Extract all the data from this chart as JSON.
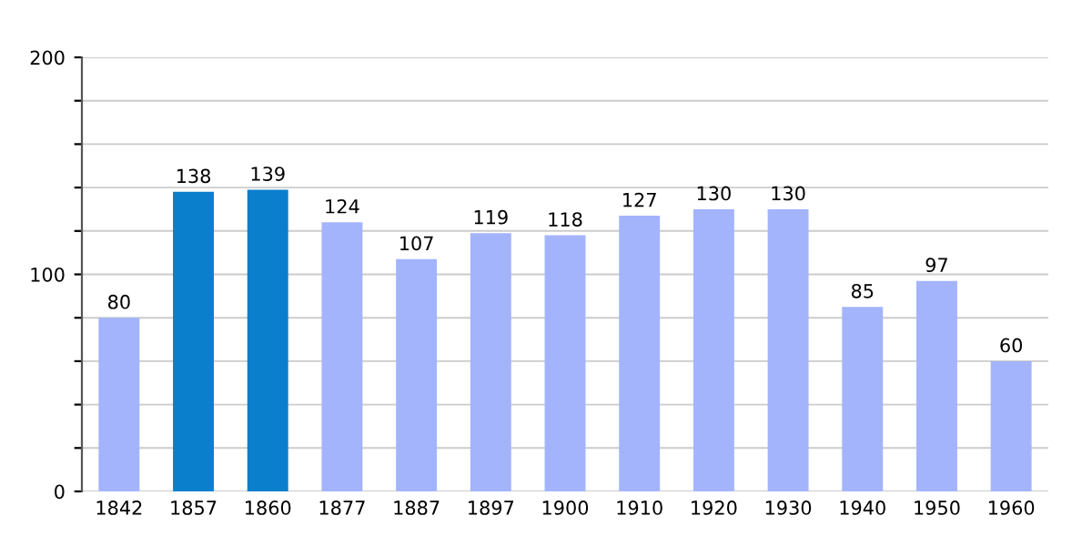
{
  "chart_data": {
    "type": "bar",
    "categories": [
      "1842",
      "1857",
      "1860",
      "1877",
      "1887",
      "1897",
      "1900",
      "1910",
      "1920",
      "1930",
      "1940",
      "1950",
      "1960"
    ],
    "values": [
      80,
      138,
      139,
      124,
      107,
      119,
      118,
      127,
      130,
      130,
      85,
      97,
      60
    ],
    "colors": [
      "#a3b4fc",
      "#0a7fcc",
      "#0a7fcc",
      "#a3b4fc",
      "#a3b4fc",
      "#a3b4fc",
      "#a3b4fc",
      "#a3b4fc",
      "#a3b4fc",
      "#a3b4fc",
      "#a3b4fc",
      "#a3b4fc",
      "#a3b4fc"
    ],
    "ylim": [
      0,
      200
    ],
    "yticks": [
      0,
      {
        "value": 20,
        "label": null
      },
      {
        "value": 40,
        "label": null
      },
      {
        "value": 60,
        "label": null
      },
      {
        "value": 80,
        "label": null
      },
      100,
      {
        "value": 120,
        "label": null
      },
      {
        "value": 140,
        "label": null
      },
      {
        "value": 160,
        "label": null
      },
      {
        "value": 180,
        "label": null
      },
      200
    ],
    "grid": "y",
    "data_labels": true,
    "legend": false
  }
}
